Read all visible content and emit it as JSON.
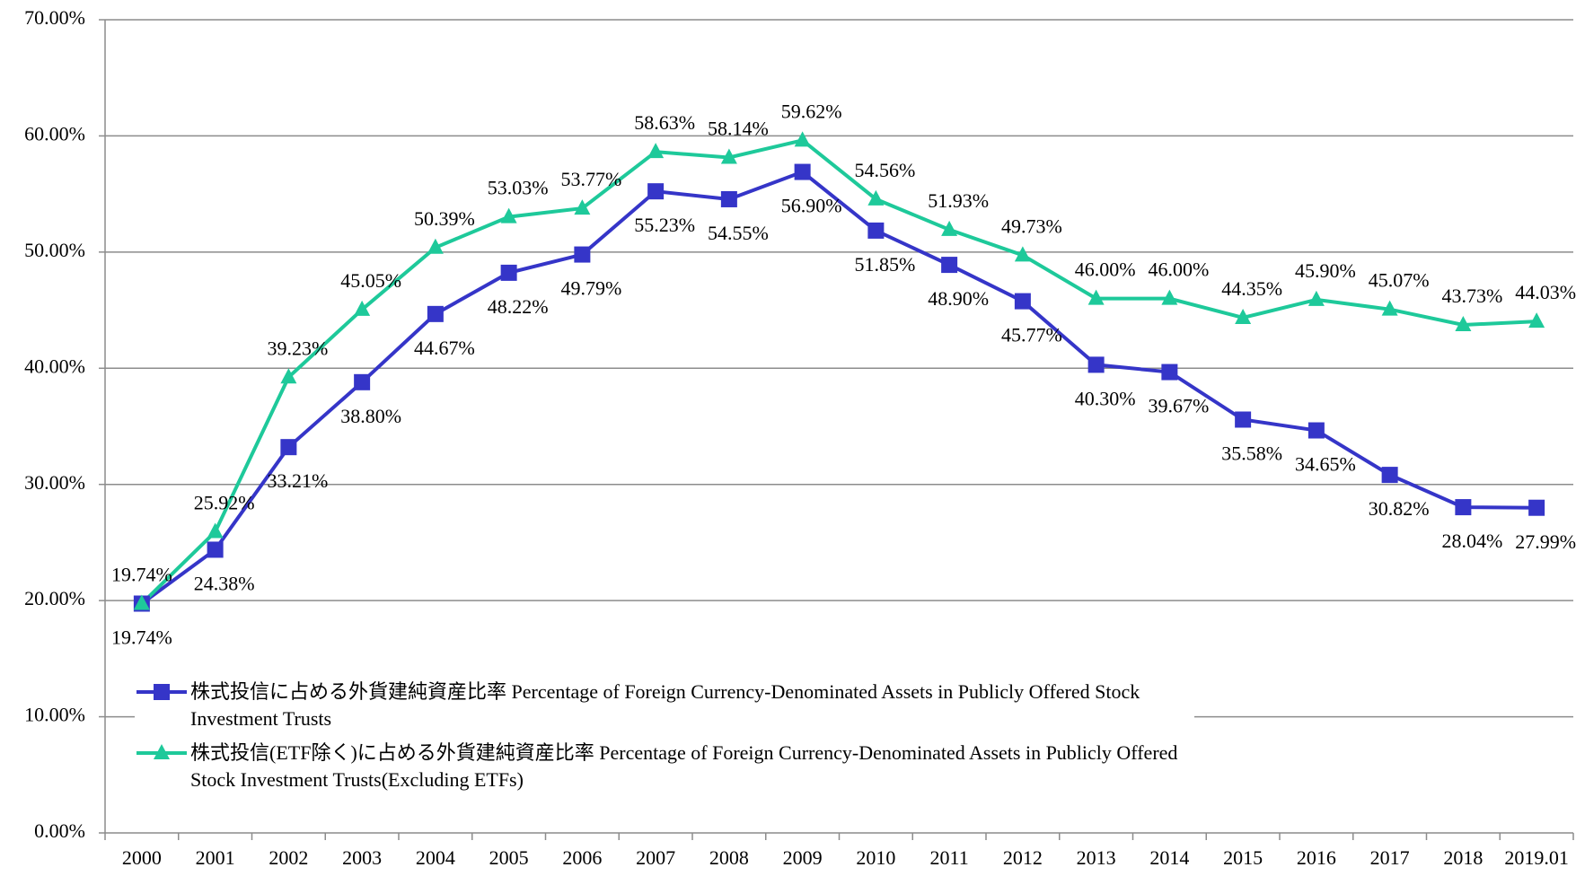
{
  "chart_data": {
    "type": "line",
    "categories": [
      "2000",
      "2001",
      "2002",
      "2003",
      "2004",
      "2005",
      "2006",
      "2007",
      "2008",
      "2009",
      "2010",
      "2011",
      "2012",
      "2013",
      "2014",
      "2015",
      "2016",
      "2017",
      "2018",
      "2019.01"
    ],
    "series": [
      {
        "name": "株式投信に占める外貨建純資産比率 Percentage of Foreign Currency-Denominated Assets in Publicly Offered Stock Investment Trusts",
        "color": "#3535c8",
        "marker": "square",
        "values": [
          19.74,
          24.38,
          33.21,
          38.8,
          44.67,
          48.22,
          49.79,
          55.23,
          54.55,
          56.9,
          51.85,
          48.9,
          45.77,
          40.3,
          39.67,
          35.58,
          34.65,
          30.82,
          28.04,
          27.99
        ],
        "value_labels": [
          "19.74%",
          "24.38%",
          "33.21%",
          "38.80%",
          "44.67%",
          "48.22%",
          "49.79%",
          "55.23%",
          "54.55%",
          "56.90%",
          "51.85%",
          "48.90%",
          "45.77%",
          "40.30%",
          "39.67%",
          "35.58%",
          "34.65%",
          "30.82%",
          "28.04%",
          "27.99%"
        ]
      },
      {
        "name": "株式投信(ETF除く)に占める外貨建純資産比率 Percentage of Foreign Currency-Denominated Assets in Publicly Offered Stock Investment Trusts(Excluding ETFs)",
        "color": "#1ec99a",
        "marker": "triangle",
        "values": [
          19.74,
          25.92,
          39.23,
          45.05,
          50.39,
          53.03,
          53.77,
          58.63,
          58.14,
          59.62,
          54.56,
          51.93,
          49.73,
          46.0,
          46.0,
          44.35,
          45.9,
          45.07,
          43.73,
          44.03
        ],
        "value_labels": [
          "19.74%",
          "25.92%",
          "39.23%",
          "45.05%",
          "50.39%",
          "53.03%",
          "53.77%",
          "58.63%",
          "58.14%",
          "59.62%",
          "54.56%",
          "51.93%",
          "49.73%",
          "46.00%",
          "46.00%",
          "44.35%",
          "45.90%",
          "45.07%",
          "43.73%",
          "44.03%"
        ]
      }
    ],
    "ylim": [
      0,
      70
    ],
    "yticks": [
      {
        "value": 0,
        "label": "0.00%"
      },
      {
        "value": 10,
        "label": "10.00%"
      },
      {
        "value": 20,
        "label": "20.00%"
      },
      {
        "value": 30,
        "label": "30.00%"
      },
      {
        "value": 40,
        "label": "40.00%"
      },
      {
        "value": 50,
        "label": "50.00%"
      },
      {
        "value": 60,
        "label": "60.00%"
      },
      {
        "value": 70,
        "label": "70.00%"
      }
    ],
    "grid": true
  }
}
